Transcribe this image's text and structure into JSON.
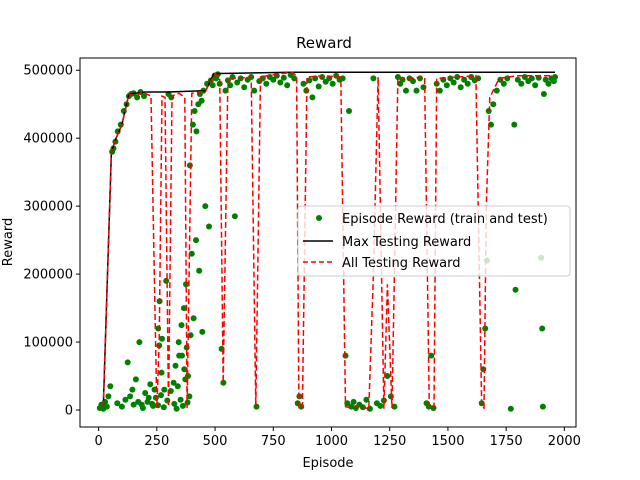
{
  "chart_data": {
    "type": "scatter",
    "title": "Reward",
    "xlabel": "Episode",
    "ylabel": "Reward",
    "xlim": [
      -80,
      2050
    ],
    "ylim": [
      -25000,
      518000
    ],
    "xticks": [
      0,
      250,
      500,
      750,
      1000,
      1250,
      1500,
      1750,
      2000
    ],
    "yticks": [
      0,
      100000,
      200000,
      300000,
      400000,
      500000
    ],
    "legend_position": "center-right",
    "grid": false,
    "series": [
      {
        "name": "Episode Reward (train and test)",
        "kind": "scatter",
        "color": "#008000",
        "points": [
          [
            5,
            3000
          ],
          [
            12,
            8000
          ],
          [
            20,
            2000
          ],
          [
            28,
            12000
          ],
          [
            35,
            5000
          ],
          [
            42,
            20000
          ],
          [
            50,
            35000
          ],
          [
            58,
            380000
          ],
          [
            64,
            385000
          ],
          [
            72,
            395000
          ],
          [
            82,
            410000
          ],
          [
            95,
            420000
          ],
          [
            108,
            440000
          ],
          [
            120,
            450000
          ],
          [
            130,
            462000
          ],
          [
            140,
            465000
          ],
          [
            150,
            466000
          ],
          [
            165,
            460000
          ],
          [
            180,
            468000
          ],
          [
            195,
            462000
          ],
          [
            80,
            10000
          ],
          [
            100,
            5000
          ],
          [
            115,
            15000
          ],
          [
            125,
            70000
          ],
          [
            135,
            20000
          ],
          [
            145,
            30000
          ],
          [
            160,
            45000
          ],
          [
            175,
            100000
          ],
          [
            185,
            8000
          ],
          [
            200,
            25000
          ],
          [
            210,
            12000
          ],
          [
            222,
            38000
          ],
          [
            234,
            6000
          ],
          [
            246,
            18000
          ],
          [
            256,
            120000
          ],
          [
            262,
            160000
          ],
          [
            270,
            55000
          ],
          [
            282,
            30000
          ],
          [
            290,
            190000
          ],
          [
            300,
            465000
          ],
          [
            312,
            460000
          ],
          [
            322,
            40000
          ],
          [
            335,
            2000
          ],
          [
            346,
            80000
          ],
          [
            356,
            125000
          ],
          [
            366,
            150000
          ],
          [
            375,
            185000
          ],
          [
            384,
            50000
          ],
          [
            392,
            360000
          ],
          [
            400,
            230000
          ],
          [
            405,
            420000
          ],
          [
            412,
            440000
          ],
          [
            420,
            410000
          ],
          [
            428,
            450000
          ],
          [
            435,
            465000
          ],
          [
            442,
            455000
          ],
          [
            450,
            470000
          ],
          [
            458,
            300000
          ],
          [
            466,
            480000
          ],
          [
            474,
            270000
          ],
          [
            482,
            485000
          ],
          [
            490,
            478000
          ],
          [
            498,
            492000
          ],
          [
            505,
            488000
          ],
          [
            512,
            494000
          ],
          [
            520,
            480000
          ],
          [
            528,
            90000
          ],
          [
            536,
            40000
          ],
          [
            545,
            470000
          ],
          [
            555,
            485000
          ],
          [
            565,
            478000
          ],
          [
            575,
            490000
          ],
          [
            585,
            285000
          ],
          [
            595,
            482000
          ],
          [
            610,
            488000
          ],
          [
            625,
            475000
          ],
          [
            640,
            486000
          ],
          [
            655,
            490000
          ],
          [
            668,
            470000
          ],
          [
            678,
            5000
          ],
          [
            690,
            484000
          ],
          [
            705,
            488000
          ],
          [
            720,
            480000
          ],
          [
            735,
            490000
          ],
          [
            750,
            486000
          ],
          [
            765,
            492000
          ],
          [
            780,
            482000
          ],
          [
            795,
            489000
          ],
          [
            810,
            478000
          ],
          [
            825,
            493000
          ],
          [
            840,
            488000
          ],
          [
            855,
            10000
          ],
          [
            862,
            20000
          ],
          [
            870,
            5000
          ],
          [
            880,
            480000
          ],
          [
            892,
            470000
          ],
          [
            905,
            485000
          ],
          [
            918,
            460000
          ],
          [
            930,
            488000
          ],
          [
            945,
            476000
          ],
          [
            960,
            490000
          ],
          [
            975,
            483000
          ],
          [
            990,
            488000
          ],
          [
            1005,
            480000
          ],
          [
            1020,
            492000
          ],
          [
            1035,
            486000
          ],
          [
            1048,
            488000
          ],
          [
            1060,
            80000
          ],
          [
            1068,
            10000
          ],
          [
            1075,
            440000
          ],
          [
            1085,
            5000
          ],
          [
            1095,
            12000
          ],
          [
            1105,
            3000
          ],
          [
            1120,
            8000
          ],
          [
            1135,
            4000
          ],
          [
            1150,
            15000
          ],
          [
            1165,
            2000
          ],
          [
            1180,
            488000
          ],
          [
            1195,
            10000
          ],
          [
            1210,
            6000
          ],
          [
            1225,
            14000
          ],
          [
            1240,
            50000
          ],
          [
            1255,
            20000
          ],
          [
            1270,
            5000
          ],
          [
            1285,
            490000
          ],
          [
            1295,
            480000
          ],
          [
            1305,
            486000
          ],
          [
            1320,
            470000
          ],
          [
            1335,
            488000
          ],
          [
            1350,
            484000
          ],
          [
            1365,
            470000
          ],
          [
            1380,
            488000
          ],
          [
            1395,
            475000
          ],
          [
            1408,
            10000
          ],
          [
            1418,
            5000
          ],
          [
            1428,
            80000
          ],
          [
            1438,
            3000
          ],
          [
            1452,
            480000
          ],
          [
            1465,
            470000
          ],
          [
            1480,
            486000
          ],
          [
            1495,
            478000
          ],
          [
            1510,
            488000
          ],
          [
            1525,
            482000
          ],
          [
            1540,
            490000
          ],
          [
            1555,
            475000
          ],
          [
            1570,
            486000
          ],
          [
            1585,
            480000
          ],
          [
            1600,
            490000
          ],
          [
            1615,
            485000
          ],
          [
            1630,
            488000
          ],
          [
            1645,
            10000
          ],
          [
            1652,
            60000
          ],
          [
            1660,
            120000
          ],
          [
            1668,
            220000
          ],
          [
            1675,
            440000
          ],
          [
            1685,
            420000
          ],
          [
            1695,
            450000
          ],
          [
            1710,
            470000
          ],
          [
            1725,
            486000
          ],
          [
            1740,
            480000
          ],
          [
            1755,
            488000
          ],
          [
            1770,
            2000
          ],
          [
            1785,
            420000
          ],
          [
            1790,
            177000
          ],
          [
            1800,
            486000
          ],
          [
            1815,
            480000
          ],
          [
            1830,
            490000
          ],
          [
            1845,
            484000
          ],
          [
            1860,
            488000
          ],
          [
            1875,
            478000
          ],
          [
            1890,
            489000
          ],
          [
            1900,
            224000
          ],
          [
            1905,
            120000
          ],
          [
            1908,
            5000
          ],
          [
            1912,
            465000
          ],
          [
            1920,
            486000
          ],
          [
            1932,
            480000
          ],
          [
            1945,
            488000
          ],
          [
            1955,
            484000
          ],
          [
            1960,
            490000
          ],
          [
            150,
            8000
          ],
          [
            170,
            12000
          ],
          [
            190,
            3000
          ],
          [
            215,
            18000
          ],
          [
            230,
            9000
          ],
          [
            240,
            30000
          ],
          [
            255,
            7000
          ],
          [
            268,
            22000
          ],
          [
            280,
            4000
          ],
          [
            295,
            14000
          ],
          [
            310,
            28000
          ],
          [
            325,
            9000
          ],
          [
            340,
            35000
          ],
          [
            352,
            15000
          ],
          [
            362,
            6000
          ],
          [
            372,
            45000
          ],
          [
            382,
            11000
          ],
          [
            390,
            20000
          ],
          [
            260,
            95000
          ],
          [
            272,
            105000
          ],
          [
            330,
            65000
          ],
          [
            344,
            100000
          ],
          [
            358,
            80000
          ],
          [
            368,
            60000
          ],
          [
            378,
            92000
          ],
          [
            395,
            110000
          ],
          [
            408,
            135000
          ],
          [
            418,
            250000
          ],
          [
            432,
            205000
          ],
          [
            445,
            115000
          ]
        ]
      },
      {
        "name": "Max Testing Reward",
        "kind": "line",
        "color": "#000000",
        "points": [
          [
            20,
            5000
          ],
          [
            55,
            380000
          ],
          [
            75,
            400000
          ],
          [
            100,
            420000
          ],
          [
            130,
            465000
          ],
          [
            200,
            468000
          ],
          [
            300,
            468000
          ],
          [
            460,
            470000
          ],
          [
            495,
            495000
          ],
          [
            830,
            497000
          ],
          [
            1960,
            497000
          ]
        ]
      },
      {
        "name": "All Testing Reward",
        "kind": "dashed-line",
        "color": "#ff0000",
        "points": [
          [
            20,
            5000
          ],
          [
            55,
            380000
          ],
          [
            75,
            400000
          ],
          [
            100,
            420000
          ],
          [
            130,
            465000
          ],
          [
            160,
            462000
          ],
          [
            185,
            468000
          ],
          [
            225,
            462000
          ],
          [
            250,
            3000
          ],
          [
            260,
            100000
          ],
          [
            272,
            462000
          ],
          [
            285,
            460000
          ],
          [
            300,
            5000
          ],
          [
            315,
            462000
          ],
          [
            345,
            466000
          ],
          [
            370,
            460000
          ],
          [
            380,
            3000
          ],
          [
            400,
            466000
          ],
          [
            430,
            468000
          ],
          [
            460,
            470000
          ],
          [
            475,
            480000
          ],
          [
            500,
            495000
          ],
          [
            520,
            490000
          ],
          [
            535,
            40000
          ],
          [
            555,
            490000
          ],
          [
            590,
            488000
          ],
          [
            655,
            490000
          ],
          [
            675,
            5000
          ],
          [
            695,
            490000
          ],
          [
            760,
            494000
          ],
          [
            830,
            497000
          ],
          [
            850,
            492000
          ],
          [
            860,
            3000
          ],
          [
            875,
            5000
          ],
          [
            895,
            490000
          ],
          [
            960,
            492000
          ],
          [
            1040,
            490000
          ],
          [
            1060,
            5000
          ],
          [
            1085,
            3000
          ],
          [
            1120,
            5000
          ],
          [
            1160,
            2000
          ],
          [
            1180,
            200000
          ],
          [
            1200,
            490000
          ],
          [
            1225,
            2000
          ],
          [
            1240,
            185000
          ],
          [
            1260,
            3000
          ],
          [
            1285,
            490000
          ],
          [
            1320,
            488000
          ],
          [
            1400,
            490000
          ],
          [
            1420,
            3000
          ],
          [
            1440,
            5000
          ],
          [
            1452,
            488000
          ],
          [
            1540,
            490000
          ],
          [
            1620,
            492000
          ],
          [
            1645,
            5000
          ],
          [
            1655,
            3000
          ],
          [
            1665,
            300000
          ],
          [
            1680,
            460000
          ],
          [
            1720,
            488000
          ],
          [
            1800,
            492000
          ],
          [
            1960,
            492000
          ]
        ]
      }
    ]
  }
}
